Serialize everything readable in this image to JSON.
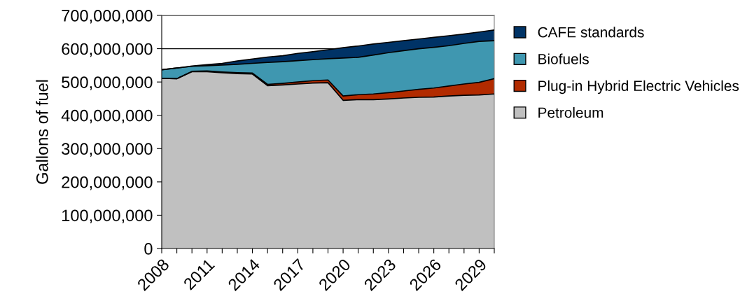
{
  "chart_data": {
    "type": "area",
    "stacked": true,
    "ylabel": "Gallons of fuel",
    "x": [
      2008,
      2009,
      2010,
      2011,
      2012,
      2013,
      2014,
      2015,
      2016,
      2017,
      2018,
      2019,
      2020,
      2021,
      2022,
      2023,
      2024,
      2025,
      2026,
      2027,
      2028,
      2029,
      2030
    ],
    "xlim": [
      2008,
      2030
    ],
    "xticks": [
      2008,
      {
        "value": 2009,
        "label": null
      },
      {
        "value": 2010,
        "label": null
      },
      2011,
      {
        "value": 2012,
        "label": null
      },
      {
        "value": 2013,
        "label": null
      },
      2014,
      {
        "value": 2015,
        "label": null
      },
      {
        "value": 2016,
        "label": null
      },
      2017,
      {
        "value": 2018,
        "label": null
      },
      {
        "value": 2019,
        "label": null
      },
      2020,
      {
        "value": 2021,
        "label": null
      },
      {
        "value": 2022,
        "label": null
      },
      2023,
      {
        "value": 2024,
        "label": null
      },
      {
        "value": 2025,
        "label": null
      },
      2026,
      {
        "value": 2027,
        "label": null
      },
      {
        "value": 2028,
        "label": null
      },
      2029,
      {
        "value": 2030,
        "label": null
      }
    ],
    "ylim": [
      0,
      700000000
    ],
    "yticks": [
      0,
      {
        "value": 100000000,
        "label": "100,000,000"
      },
      {
        "value": 200000000,
        "label": "200,000,000"
      },
      {
        "value": 300000000,
        "label": "300,000,000"
      },
      {
        "value": 400000000,
        "label": "400,000,000"
      },
      {
        "value": 500000000,
        "label": "500,000,000"
      },
      {
        "value": 600000000,
        "label": "600,000,000"
      },
      {
        "value": 700000000,
        "label": "700,000,000"
      }
    ],
    "grid": "y",
    "legend": "right",
    "series": [
      {
        "name": "Petroleum",
        "color": "#c0c0c0",
        "values": [
          511000000,
          510000000,
          531000000,
          531000000,
          528000000,
          525000000,
          524000000,
          489000000,
          491000000,
          494000000,
          497000000,
          498000000,
          445000000,
          447000000,
          447000000,
          449000000,
          452000000,
          454000000,
          455000000,
          458000000,
          460000000,
          461000000,
          464000000
        ]
      },
      {
        "name": "Plug-in Hybrid Electric Vehicles",
        "color": "#b22b00",
        "values": [
          0,
          0,
          1000000,
          2000000,
          2000000,
          3000000,
          3000000,
          4000000,
          5000000,
          6000000,
          7000000,
          8000000,
          13000000,
          15000000,
          17000000,
          19000000,
          21000000,
          24000000,
          27000000,
          30000000,
          34000000,
          38000000,
          46000000
        ]
      },
      {
        "name": "Biofuels",
        "color": "#3f97b0",
        "values": [
          26000000,
          32000000,
          15000000,
          16000000,
          21000000,
          25000000,
          29000000,
          66000000,
          65000000,
          64000000,
          63000000,
          64000000,
          114000000,
          112000000,
          117000000,
          120000000,
          121000000,
          122000000,
          122000000,
          121000000,
          122000000,
          123000000,
          114000000
        ]
      },
      {
        "name": "CAFE standards",
        "color": "#003366",
        "values": [
          0,
          0,
          1000000,
          3000000,
          5000000,
          10000000,
          13000000,
          16000000,
          18000000,
          22000000,
          24000000,
          27000000,
          31000000,
          34000000,
          33000000,
          31000000,
          30000000,
          29000000,
          30000000,
          30000000,
          28000000,
          28000000,
          32000000
        ]
      }
    ]
  }
}
